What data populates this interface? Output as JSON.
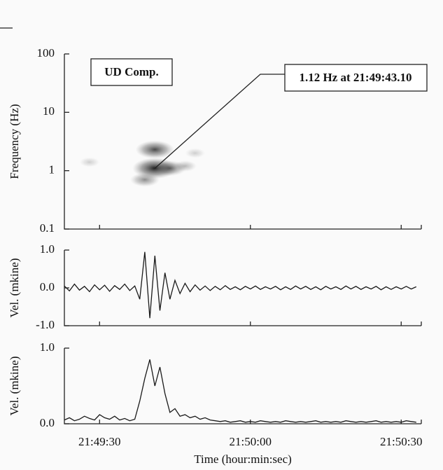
{
  "chart_data": [
    {
      "type": "spectrogram",
      "ylabel": "Frequency (Hz)",
      "log_y": true,
      "ylim": [
        0.1,
        100
      ],
      "yticks": [
        0.1,
        1,
        10,
        100
      ],
      "xlim": [
        23,
        94
      ],
      "annotations": [
        "UD Comp.",
        "1.12 Hz at 21:49:43.10"
      ],
      "x": [
        41,
        41,
        39,
        44,
        47,
        49,
        28
      ],
      "values": [
        1.1,
        2.3,
        0.7,
        1.1,
        1.2,
        2.0,
        1.4
      ],
      "intensity": [
        1,
        0.8,
        0.5,
        0.6,
        0.3,
        0.2,
        0.2
      ]
    },
    {
      "type": "line",
      "ylabel": "Vel. (mkine)",
      "color": "#1a1a1a",
      "xlim": [
        23,
        94
      ],
      "ylim": [
        -1,
        1
      ],
      "yticks": [
        {
          "value": 1,
          "label": "1.0"
        },
        {
          "value": 0,
          "label": "0.0"
        },
        {
          "value": -1,
          "label": "-1.0"
        }
      ],
      "x": [
        23,
        24,
        25,
        26,
        27,
        28,
        29,
        30,
        31,
        32,
        33,
        34,
        35,
        36,
        37,
        38,
        39,
        40,
        41,
        42,
        43,
        44,
        45,
        46,
        47,
        48,
        49,
        50,
        51,
        52,
        53,
        54,
        55,
        56,
        57,
        58,
        59,
        60,
        61,
        62,
        63,
        64,
        65,
        66,
        67,
        68,
        69,
        70,
        71,
        72,
        73,
        74,
        75,
        76,
        77,
        78,
        79,
        80,
        81,
        82,
        83,
        84,
        85,
        86,
        87,
        88,
        89,
        90,
        91,
        92,
        93
      ],
      "values": [
        0.05,
        -0.08,
        0.1,
        -0.06,
        0.04,
        -0.1,
        0.08,
        -0.05,
        0.07,
        -0.09,
        0.06,
        -0.04,
        0.1,
        -0.07,
        0.05,
        -0.3,
        0.95,
        -0.8,
        0.85,
        -0.6,
        0.4,
        -0.3,
        0.2,
        -0.15,
        0.12,
        -0.1,
        0.08,
        -0.06,
        0.05,
        -0.07,
        0.04,
        -0.05,
        0.06,
        -0.04,
        0.03,
        -0.05,
        0.04,
        -0.03,
        0.05,
        -0.04,
        0.03,
        -0.03,
        0.04,
        -0.05,
        0.03,
        -0.04,
        0.05,
        -0.03,
        0.04,
        -0.04,
        0.03,
        -0.05,
        0.04,
        -0.03,
        0.03,
        -0.04,
        0.05,
        -0.03,
        0.04,
        -0.04,
        0.03,
        -0.03,
        0.04,
        -0.05,
        0.03,
        -0.04,
        0.03,
        -0.03,
        0.04,
        -0.03,
        0.03
      ]
    },
    {
      "type": "line",
      "ylabel": "Vel. (mkine)",
      "xlabel": "Time (hour:min:sec)",
      "color": "#1a1a1a",
      "xlim": [
        23,
        94
      ],
      "ylim": [
        0,
        1
      ],
      "yticks": [
        {
          "value": 1,
          "label": "1.0"
        },
        {
          "value": 0,
          "label": "0.0"
        }
      ],
      "xticks": [
        {
          "value": 30,
          "label": "21:49:30"
        },
        {
          "value": 60,
          "label": "21:50:00"
        },
        {
          "value": 90,
          "label": "21:50:30"
        }
      ],
      "x": [
        23,
        24,
        25,
        26,
        27,
        28,
        29,
        30,
        31,
        32,
        33,
        34,
        35,
        36,
        37,
        38,
        39,
        40,
        41,
        42,
        43,
        44,
        45,
        46,
        47,
        48,
        49,
        50,
        51,
        52,
        53,
        54,
        55,
        56,
        57,
        58,
        59,
        60,
        61,
        62,
        63,
        64,
        65,
        66,
        67,
        68,
        69,
        70,
        71,
        72,
        73,
        74,
        75,
        76,
        77,
        78,
        79,
        80,
        81,
        82,
        83,
        84,
        85,
        86,
        87,
        88,
        89,
        90,
        91,
        92,
        93
      ],
      "values": [
        0.05,
        0.08,
        0.04,
        0.06,
        0.1,
        0.07,
        0.05,
        0.12,
        0.08,
        0.06,
        0.1,
        0.05,
        0.07,
        0.04,
        0.06,
        0.3,
        0.6,
        0.85,
        0.5,
        0.75,
        0.4,
        0.15,
        0.2,
        0.1,
        0.12,
        0.08,
        0.1,
        0.06,
        0.08,
        0.05,
        0.04,
        0.03,
        0.04,
        0.02,
        0.03,
        0.04,
        0.02,
        0.03,
        0.02,
        0.04,
        0.03,
        0.02,
        0.03,
        0.02,
        0.04,
        0.03,
        0.02,
        0.03,
        0.02,
        0.03,
        0.04,
        0.02,
        0.03,
        0.02,
        0.03,
        0.02,
        0.04,
        0.03,
        0.02,
        0.03,
        0.02,
        0.03,
        0.04,
        0.02,
        0.03,
        0.02,
        0.03,
        0.02,
        0.04,
        0.03,
        0.02
      ]
    }
  ]
}
